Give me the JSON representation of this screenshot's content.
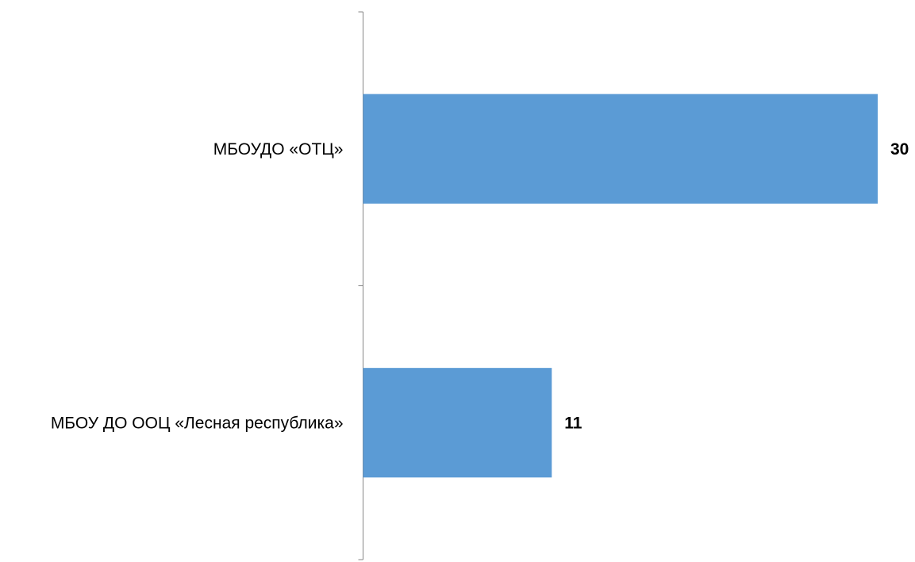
{
  "chart_data": {
    "type": "bar",
    "orientation": "horizontal",
    "categories": [
      "МБОУДО «ОТЦ»",
      "МБОУ ДО ООЦ «Лесная республика»"
    ],
    "values": [
      30,
      11
    ],
    "value_labels": [
      "30",
      "11"
    ],
    "title": "",
    "xlabel": "",
    "ylabel": "",
    "xlim": [
      0,
      30
    ],
    "grid": false,
    "legend": "none",
    "bar_color": "#5B9BD5",
    "axis_color": "#868686"
  }
}
